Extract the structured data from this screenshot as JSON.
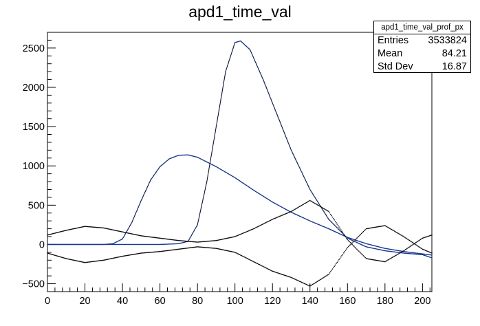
{
  "window": {
    "title": "apd1_time_val"
  },
  "stats": {
    "name": "apd1_time_val_prof_px",
    "rows": [
      {
        "label": "Entries",
        "value": "3533824"
      },
      {
        "label": "Mean",
        "value": "84.21"
      },
      {
        "label": "Std Dev",
        "value": "16.87"
      }
    ]
  },
  "chart_data": {
    "type": "scatter",
    "title": "apd1_time_val",
    "xlabel": "",
    "ylabel": "",
    "xlim": [
      0,
      205
    ],
    "ylim": [
      -600,
      2700
    ],
    "x_ticks": [
      0,
      20,
      40,
      60,
      80,
      100,
      120,
      140,
      160,
      180,
      200
    ],
    "y_ticks": [
      -500,
      0,
      500,
      1000,
      1500,
      2000,
      2500
    ],
    "y_tick_labels": [
      "−500",
      "0",
      "500",
      "1000",
      "1500",
      "2000",
      "2500"
    ],
    "grid": false,
    "series": [
      {
        "style": "line-with-dots",
        "color": "#000000",
        "x": [
          0,
          30,
          35,
          40,
          45,
          50,
          55,
          60,
          65,
          70,
          75,
          80,
          90,
          100,
          110,
          120,
          130,
          140,
          150,
          160,
          170,
          180,
          190,
          200,
          205
        ],
        "y": [
          0,
          0,
          10,
          70,
          280,
          560,
          820,
          990,
          1090,
          1135,
          1140,
          1110,
          990,
          850,
          690,
          540,
          410,
          300,
          200,
          90,
          10,
          -50,
          -90,
          -120,
          -135
        ]
      },
      {
        "style": "line-with-dots",
        "color": "#000000",
        "x": [
          0,
          60,
          70,
          75,
          80,
          85,
          90,
          95,
          100,
          103,
          108,
          115,
          120,
          130,
          140,
          150,
          160,
          170,
          180,
          190,
          200,
          205
        ],
        "y": [
          0,
          0,
          10,
          40,
          250,
          800,
          1500,
          2200,
          2570,
          2590,
          2480,
          2100,
          1800,
          1200,
          700,
          320,
          80,
          -30,
          -80,
          -110,
          -130,
          -170
        ]
      },
      {
        "style": "dots",
        "color": "#000000",
        "x": [
          0,
          10,
          20,
          30,
          40,
          50,
          60,
          70,
          80,
          90,
          100,
          110,
          120,
          130,
          140,
          150,
          160,
          170,
          180,
          190,
          200,
          205
        ],
        "y": [
          120,
          180,
          230,
          210,
          160,
          110,
          80,
          50,
          30,
          50,
          100,
          200,
          320,
          420,
          560,
          420,
          60,
          -180,
          -220,
          -80,
          80,
          120
        ]
      },
      {
        "style": "dots",
        "color": "#000000",
        "x": [
          0,
          10,
          20,
          30,
          40,
          50,
          60,
          70,
          80,
          90,
          100,
          110,
          120,
          130,
          140,
          150,
          160,
          170,
          180,
          190,
          200,
          205
        ],
        "y": [
          -110,
          -180,
          -230,
          -200,
          -150,
          -110,
          -90,
          -60,
          -30,
          -50,
          -100,
          -220,
          -340,
          -420,
          -530,
          -380,
          -40,
          200,
          240,
          100,
          -60,
          -110
        ]
      }
    ]
  }
}
